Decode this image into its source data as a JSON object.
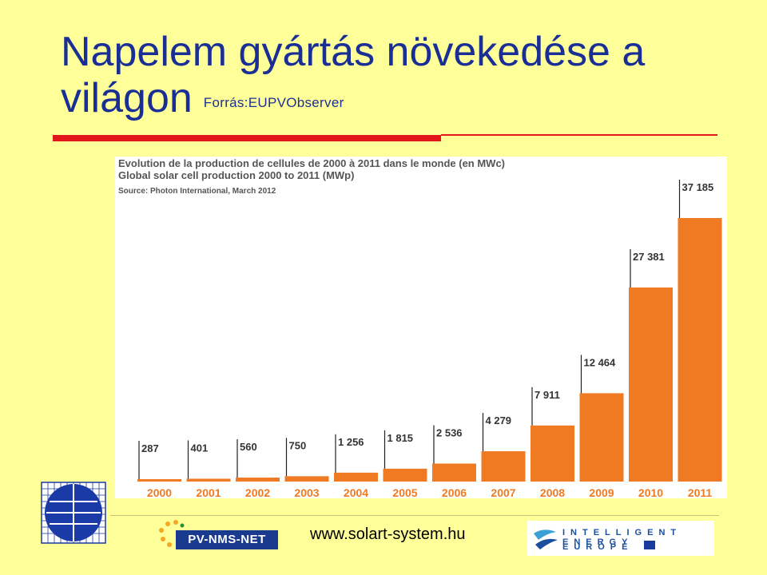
{
  "slide": {
    "title_line1": "Napelem gyártás növekedése a",
    "title_line2": "világon",
    "source": "Forrás:EUPVObserver"
  },
  "chart_data": {
    "type": "bar",
    "title_fr": "Evolution de la production de cellules de 2000 à 2011 dans le monde (en MWc)",
    "title_en": "Global solar cell production 2000 to 2011 (MWp)",
    "source": "Source: Photon International, March 2012",
    "categories": [
      "2000",
      "2001",
      "2002",
      "2003",
      "2004",
      "2005",
      "2006",
      "2007",
      "2008",
      "2009",
      "2010",
      "2011"
    ],
    "values": [
      287,
      401,
      560,
      750,
      1256,
      1815,
      2536,
      4279,
      7911,
      12464,
      27381,
      37185
    ],
    "value_labels": [
      "287",
      "401",
      "560",
      "750",
      "1 256",
      "1 815",
      "2 536",
      "4 279",
      "7 911",
      "12 464",
      "27 381",
      "37 185"
    ],
    "ylim": [
      0,
      37185
    ],
    "grid": false,
    "bar_color": "#f07a22"
  },
  "footer": {
    "url": "www.solart-system.hu",
    "pv_logo_text": "PV-NMS-NET",
    "iee_line1": "INTELLIGENT ENERGY",
    "iee_line2": "EUROPE"
  }
}
